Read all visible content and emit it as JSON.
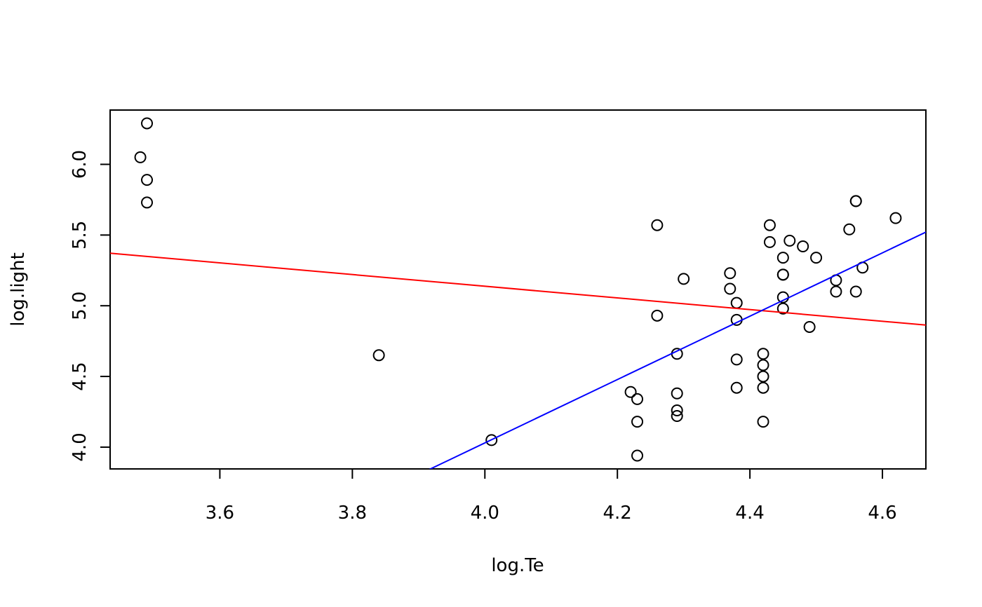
{
  "chart_data": {
    "type": "scatter",
    "xlabel": "log.Te",
    "ylabel": "log.light",
    "x": [
      4.37,
      4.56,
      4.26,
      4.56,
      4.3,
      4.46,
      3.84,
      4.57,
      4.26,
      4.37,
      3.49,
      4.43,
      4.48,
      4.01,
      4.29,
      4.42,
      4.23,
      4.42,
      4.23,
      3.49,
      4.29,
      4.29,
      4.42,
      4.49,
      4.38,
      4.42,
      4.29,
      4.38,
      4.22,
      3.48,
      4.38,
      4.56,
      4.45,
      3.49,
      4.23,
      4.62,
      4.53,
      4.45,
      4.53,
      4.43,
      4.38,
      4.45,
      4.5,
      4.45,
      4.55,
      4.45,
      4.42
    ],
    "y": [
      5.23,
      5.74,
      4.93,
      5.74,
      5.19,
      5.46,
      4.65,
      5.27,
      5.57,
      5.12,
      5.73,
      5.45,
      5.42,
      4.05,
      4.26,
      4.58,
      3.94,
      4.18,
      4.18,
      5.89,
      4.38,
      4.22,
      4.42,
      4.85,
      5.02,
      4.66,
      4.66,
      4.9,
      4.39,
      6.05,
      4.42,
      5.1,
      5.22,
      6.29,
      4.34,
      5.62,
      5.1,
      5.22,
      5.18,
      5.57,
      4.62,
      5.06,
      5.34,
      5.34,
      5.54,
      4.98,
      4.5
    ],
    "point_color": "#000000",
    "lines": [
      {
        "color": "#ff0000",
        "intercept": 6.79,
        "slope": -0.413
      },
      {
        "color": "#0000ff",
        "intercept": -4.93,
        "slope": 2.24
      }
    ],
    "xlim": [
      3.4344,
      4.6656
    ],
    "ylim": [
      3.846,
      6.384
    ],
    "xticks": [
      3.6,
      3.8,
      {
        "value": 4,
        "label": "4.0"
      },
      4.2,
      4.4,
      4.6
    ],
    "yticks": [
      {
        "value": 4,
        "label": "4.0"
      },
      4.5,
      {
        "value": 5,
        "label": "5.0"
      },
      5.5,
      {
        "value": 6,
        "label": "6.0"
      }
    ]
  }
}
